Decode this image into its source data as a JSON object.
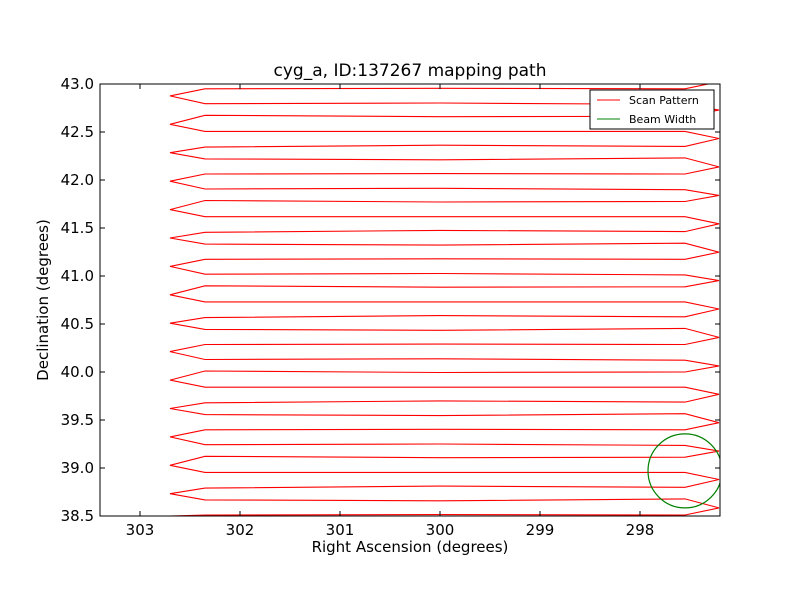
{
  "chart_data": {
    "type": "line",
    "title": "cyg_a, ID:137267 mapping path",
    "xlabel": "Right Ascension (degrees)",
    "ylabel": "Declination (degrees)",
    "xlim": [
      303.4,
      297.2
    ],
    "ylim": [
      38.5,
      43.0
    ],
    "x_reversed": true,
    "grid": false,
    "legend_position": "top-right",
    "xticks": [
      303,
      302,
      301,
      300,
      299,
      298
    ],
    "xtick_labels": [
      "303",
      "302",
      "301",
      "300",
      "299",
      "298"
    ],
    "yticks": [
      38.5,
      39.0,
      39.5,
      40.0,
      40.5,
      41.0,
      41.5,
      42.0,
      42.5,
      43.0
    ],
    "ytick_labels": [
      "38.5",
      "39.0",
      "39.5",
      "40.0",
      "40.5",
      "41.0",
      "41.5",
      "42.0",
      "42.5",
      "43.0"
    ],
    "scan": {
      "name": "Scan Pattern",
      "color": "#ff0000",
      "ra_east": 302.7,
      "ra_west": 297.21,
      "ra_inner_east": 302.35,
      "ra_inner_west": 297.55,
      "dec_start": 38.51,
      "dec_end": 42.95,
      "dec_step": 0.148
    },
    "beam": {
      "name": "Beam Width",
      "color": "#008000",
      "center_ra": 297.55,
      "center_dec": 38.97,
      "radius_deg": 0.37
    }
  }
}
